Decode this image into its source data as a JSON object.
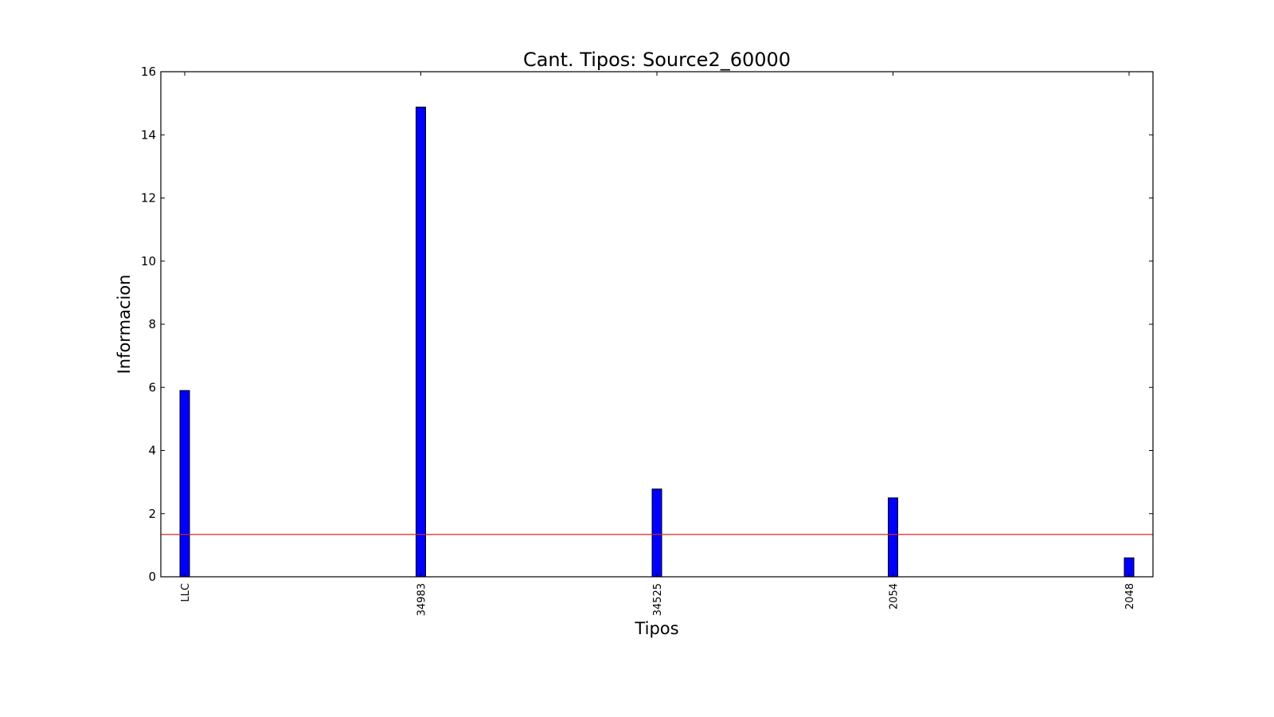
{
  "chart_data": {
    "type": "bar",
    "title": "Cant. Tipos: Source2_60000",
    "xlabel": "Tipos",
    "ylabel": "Informacion",
    "categories": [
      "LLC",
      "34983",
      "34525",
      "2054",
      "2048"
    ],
    "values": [
      5.9,
      14.88,
      2.78,
      2.5,
      0.6
    ],
    "ylim": [
      0,
      16
    ],
    "yticks": [
      "0",
      "2",
      "4",
      "6",
      "8",
      "10",
      "12",
      "14",
      "16"
    ],
    "reference_line": 1.34,
    "grid": false,
    "colors": {
      "bar": "#0000ff",
      "reference_line": "#d62728",
      "axes": "#000000"
    }
  }
}
